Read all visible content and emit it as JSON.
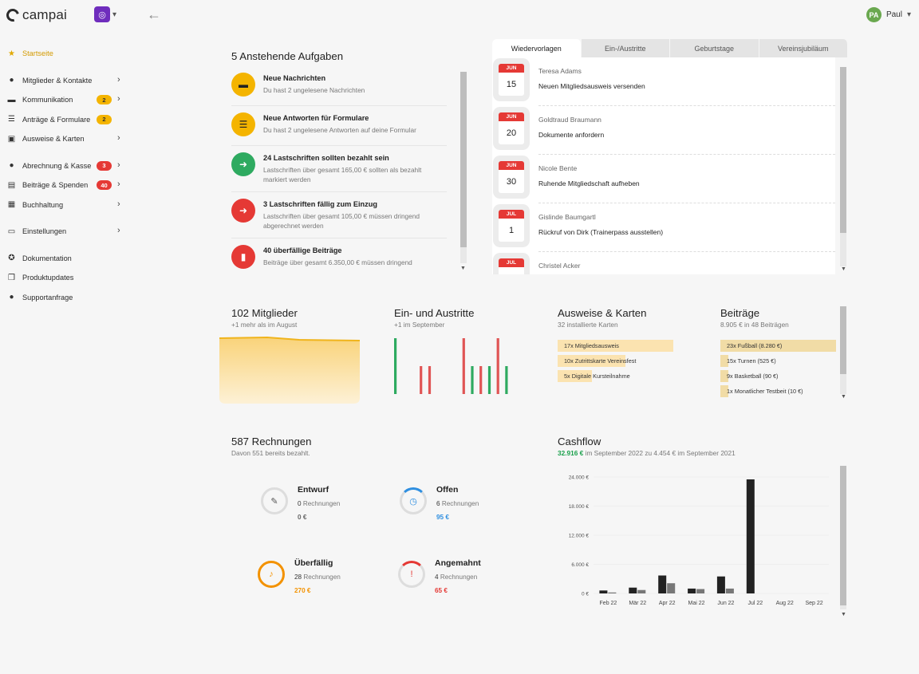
{
  "app": {
    "name": "campai",
    "org_initial": "◎"
  },
  "user": {
    "initials": "PA",
    "name": "Paul"
  },
  "sidebar": {
    "items": [
      {
        "label": "Startseite",
        "icon": "star-icon",
        "glyph": "★",
        "active": true,
        "badge": "",
        "chevron": false
      },
      {
        "gap": true
      },
      {
        "label": "Mitglieder & Kontakte",
        "icon": "users-icon",
        "glyph": "●",
        "badge": "",
        "chevron": true
      },
      {
        "label": "Kommunikation",
        "icon": "inbox-icon",
        "glyph": "▬",
        "badge": "2",
        "badge_color": "yellow",
        "chevron": true
      },
      {
        "label": "Anträge & Formulare",
        "icon": "form-icon",
        "glyph": "☰",
        "badge": "2",
        "badge_color": "yellow",
        "chevron": false
      },
      {
        "label": "Ausweise & Karten",
        "icon": "id-card-icon",
        "glyph": "▣",
        "badge": "",
        "chevron": true
      },
      {
        "gap": true
      },
      {
        "label": "Abrechnung & Kasse",
        "icon": "money-bag-icon",
        "glyph": "●",
        "badge": "3",
        "badge_color": "red",
        "chevron": true
      },
      {
        "label": "Beiträge & Spenden",
        "icon": "ledger-icon",
        "glyph": "▤",
        "badge": "40",
        "badge_color": "red",
        "chevron": true
      },
      {
        "label": "Buchhaltung",
        "icon": "calculator-icon",
        "glyph": "▦",
        "badge": "",
        "chevron": true
      },
      {
        "gap": true
      },
      {
        "label": "Einstellungen",
        "icon": "settings-icon",
        "glyph": "▭",
        "badge": "",
        "chevron": true
      },
      {
        "gap": true
      },
      {
        "label": "Dokumentation",
        "icon": "lifebuoy-icon",
        "glyph": "✪",
        "badge": "",
        "chevron": false
      },
      {
        "label": "Produktupdates",
        "icon": "gift-icon",
        "glyph": "❒",
        "badge": "",
        "chevron": false
      },
      {
        "label": "Supportanfrage",
        "icon": "chat-icon",
        "glyph": "●",
        "badge": "",
        "chevron": false
      }
    ]
  },
  "tasks": {
    "title": "5 Anstehende Aufgaben",
    "items": [
      {
        "title": "Neue Nachrichten",
        "desc": "Du hast 2 ungelesene Nachrichten",
        "color": "yellow",
        "icon": "inbox-icon",
        "glyph": "▬"
      },
      {
        "title": "Neue Antworten für Formulare",
        "desc": "Du hast 2 ungelesene Antworten auf deine Formular",
        "color": "yellow",
        "icon": "form-icon",
        "glyph": "☰"
      },
      {
        "title": "24 Lastschriften sollten bezahlt sein",
        "desc": "Lastschriften über gesamt 165,00 € sollten als bezahlt markiert werden",
        "color": "green",
        "icon": "transfer-icon",
        "glyph": "➜"
      },
      {
        "title": "3 Lastschriften fällig zum Einzug",
        "desc": "Lastschriften über gesamt 105,00 € müssen dringend abgerechnet werden",
        "color": "red",
        "icon": "transfer-icon",
        "glyph": "➜"
      },
      {
        "title": "40 überfällige Beiträge",
        "desc": "Beiträge über gesamt 6.350,00 € müssen dringend",
        "color": "red",
        "icon": "invoice-icon",
        "glyph": "▮"
      }
    ]
  },
  "reminders": {
    "tabs": [
      "Wiedervorlagen",
      "Ein-/Austritte",
      "Geburtstage",
      "Vereinsjubiläum"
    ],
    "items": [
      {
        "month": "JUN",
        "day": "15",
        "name": "Teresa Adams",
        "task": "Neuen Mitgliedsausweis versenden"
      },
      {
        "month": "JUN",
        "day": "20",
        "name": "Goldtraud Braumann",
        "task": "Dokumente anfordern"
      },
      {
        "month": "JUN",
        "day": "30",
        "name": "Nicole Bente",
        "task": "Ruhende Mitgliedschaft aufheben"
      },
      {
        "month": "JUL",
        "day": "1",
        "name": "Gislinde Baumgartl",
        "task": "Rückruf von Dirk (Trainerpass ausstellen)"
      },
      {
        "month": "JUL",
        "day": "",
        "name": "Christel Acker",
        "task": ""
      }
    ]
  },
  "members": {
    "title": "102 Mitglieder",
    "sub": "+1 mehr als im August"
  },
  "inout": {
    "title": "Ein- und Austritte",
    "sub": "+1 im September",
    "bars": [
      {
        "v": 1.0,
        "c": "#2eaa60"
      },
      {
        "v": 0,
        "c": "#2eaa60"
      },
      {
        "v": 0,
        "c": "#2eaa60"
      },
      {
        "v": 0.5,
        "c": "#e05555"
      },
      {
        "v": 0.5,
        "c": "#e05555"
      },
      {
        "v": 0,
        "c": "#e05555"
      },
      {
        "v": 0,
        "c": "#e05555"
      },
      {
        "v": 0,
        "c": "#e05555"
      },
      {
        "v": 1.0,
        "c": "#e05555"
      },
      {
        "v": 0.5,
        "c": "#2eaa60"
      },
      {
        "v": 0.5,
        "c": "#e05555"
      },
      {
        "v": 0.5,
        "c": "#2eaa60"
      },
      {
        "v": 1.0,
        "c": "#e05555"
      },
      {
        "v": 0.5,
        "c": "#2eaa60"
      }
    ]
  },
  "cards_stat": {
    "title": "Ausweise & Karten",
    "sub": "32 installierte Karten",
    "items": [
      {
        "label": "17x Mitgliedsausweis",
        "value": 17
      },
      {
        "label": "10x Zutrittskarte Vereinsfest",
        "value": 10
      },
      {
        "label": "5x Digitale Kursteilnahme",
        "value": 5
      }
    ]
  },
  "contrib": {
    "title": "Beiträge",
    "sub": "8.905 € in 48 Beiträgen",
    "items": [
      {
        "label": "23x Fußball (8.280 €)",
        "value": 8280
      },
      {
        "label": "15x Turnen (525 €)",
        "value": 525
      },
      {
        "label": "9x Basketball (90 €)",
        "value": 90
      },
      {
        "label": "1x Monatlicher Testbeit (10 €)",
        "value": 10
      }
    ]
  },
  "invoices": {
    "title": "587 Rechnungen",
    "sub": "Davon 551 bereits bezahlt.",
    "unit": "Rechnungen",
    "items": [
      {
        "title": "Entwurf",
        "count": "0",
        "sum": "0 €",
        "color": "#555555",
        "icon": "pencil-icon",
        "glyph": "✎",
        "progress": 0
      },
      {
        "title": "Offen",
        "count": "6",
        "sum": "95 €",
        "color": "#2f8fe0",
        "icon": "clock-icon",
        "glyph": "◷",
        "progress": 0.2
      },
      {
        "title": "Überfällig",
        "count": "28",
        "sum": "270 €",
        "color": "#f39200",
        "icon": "bell-icon",
        "glyph": "♪",
        "progress": 1
      },
      {
        "title": "Angemahnt",
        "count": "4",
        "sum": "65 €",
        "color": "#e53935",
        "icon": "alert-icon",
        "glyph": "!",
        "progress": 0.15
      }
    ]
  },
  "cashflow": {
    "title": "Cashflow",
    "highlight": "32.916 €",
    "sub_rest": " im September 2022 zu 4.454 € im September 2021"
  },
  "chart_data": {
    "type": "bar",
    "title": "Cashflow",
    "categories": [
      "Feb 22",
      "Mär 22",
      "Apr 22",
      "Mai 22",
      "Jun 22",
      "Jul 22",
      "Aug 22",
      "Sep 22"
    ],
    "ylim": [
      0,
      24000
    ],
    "yticks": [
      "0 €",
      "6.000 €",
      "12.000 €",
      "18.000 €",
      "24.000 €"
    ],
    "series": [
      {
        "values": [
          600,
          1200,
          3700,
          1000,
          3500,
          23500,
          0,
          0
        ],
        "color": "#222222"
      },
      {
        "values": [
          200,
          700,
          2100,
          900,
          1000,
          0,
          0,
          0
        ],
        "color": "#777777"
      }
    ]
  }
}
